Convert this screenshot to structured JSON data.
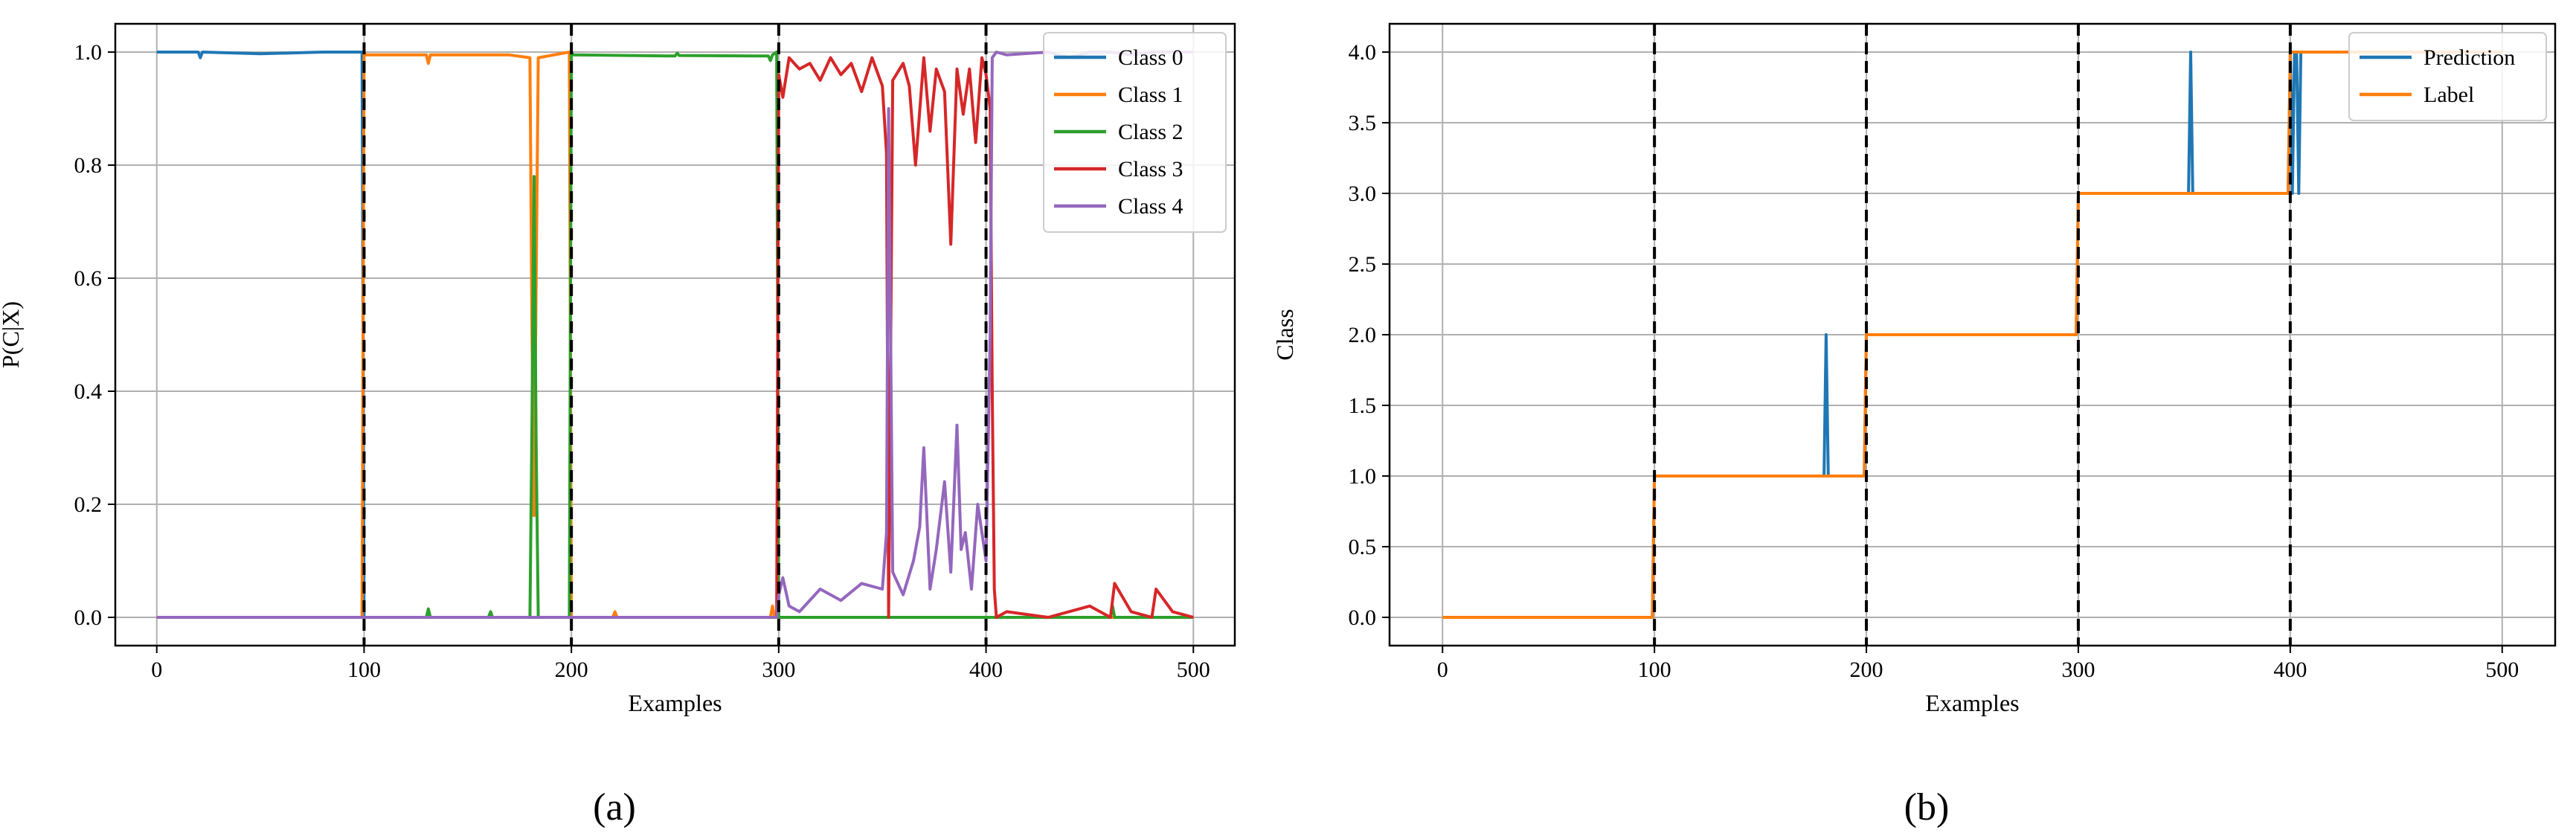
{
  "captions": [
    "(a)",
    "(b)"
  ],
  "chart_data": [
    {
      "type": "line",
      "panel": "a",
      "xlabel": "Examples",
      "ylabel": "P(C|X)",
      "xlim": [
        -20,
        520
      ],
      "ylim": [
        -0.05,
        1.05
      ],
      "xticks": [
        0,
        100,
        200,
        300,
        400,
        500
      ],
      "yticks": [
        0.0,
        0.2,
        0.4,
        0.6,
        0.8,
        1.0
      ],
      "xtick_labels": [
        "0",
        "100",
        "200",
        "300",
        "400",
        "500"
      ],
      "ytick_labels": [
        "0.0",
        "0.2",
        "0.4",
        "0.6",
        "0.8",
        "1.0"
      ],
      "grid": true,
      "legend_position": "top-right",
      "boundaries": [
        100,
        200,
        300,
        400
      ],
      "series": [
        {
          "name": "Class 0",
          "color": "#1f77b4",
          "x": [
            0,
            20,
            21,
            22,
            50,
            80,
            99,
            100,
            101,
            500
          ],
          "y": [
            1.0,
            1.0,
            0.99,
            1.0,
            0.997,
            1.0,
            1.0,
            0.0,
            0.0,
            0.0
          ]
        },
        {
          "name": "Class 1",
          "color": "#ff7f0e",
          "x": [
            0,
            99,
            100,
            101,
            130,
            131,
            132,
            170,
            180,
            181,
            182,
            183,
            184,
            199,
            200,
            201,
            220,
            221,
            222,
            296,
            297,
            298,
            300,
            500
          ],
          "y": [
            0.0,
            0.0,
            1.0,
            0.995,
            0.995,
            0.98,
            0.995,
            0.995,
            0.99,
            0.5,
            0.18,
            0.6,
            0.99,
            1.0,
            0.0,
            0.0,
            0.0,
            0.01,
            0.0,
            0.0,
            0.02,
            0.0,
            0.0,
            0.0
          ]
        },
        {
          "name": "Class 2",
          "color": "#2ca02c",
          "x": [
            0,
            130,
            131,
            132,
            160,
            161,
            162,
            180,
            181,
            182,
            183,
            184,
            199,
            200,
            201,
            250,
            251,
            252,
            295,
            296,
            297,
            299,
            300,
            301,
            460,
            461,
            462,
            500
          ],
          "y": [
            0.0,
            0.0,
            0.015,
            0.0,
            0.0,
            0.01,
            0.0,
            0.0,
            0.35,
            0.78,
            0.3,
            0.0,
            0.0,
            1.0,
            0.995,
            0.993,
            0.998,
            0.994,
            0.993,
            0.985,
            0.995,
            1.0,
            0.0,
            0.0,
            0.0,
            0.02,
            0.0,
            0.0
          ]
        },
        {
          "name": "Class 3",
          "color": "#d62728",
          "x": [
            0,
            299,
            300,
            302,
            305,
            310,
            315,
            320,
            325,
            330,
            335,
            340,
            345,
            350,
            352,
            353,
            355,
            360,
            363,
            366,
            370,
            373,
            376,
            380,
            383,
            386,
            389,
            392,
            395,
            398,
            400,
            402,
            403,
            404,
            405,
            410,
            430,
            450,
            460,
            462,
            470,
            480,
            482,
            490,
            500
          ],
          "y": [
            0.0,
            0.0,
            0.96,
            0.92,
            0.99,
            0.97,
            0.98,
            0.95,
            0.99,
            0.96,
            0.98,
            0.93,
            0.99,
            0.94,
            0.82,
            0.0,
            0.95,
            0.98,
            0.94,
            0.8,
            0.99,
            0.86,
            0.97,
            0.93,
            0.66,
            0.97,
            0.89,
            0.97,
            0.84,
            0.99,
            0.96,
            0.9,
            0.4,
            0.05,
            0.0,
            0.01,
            0.0,
            0.02,
            0.0,
            0.06,
            0.01,
            0.0,
            0.05,
            0.01,
            0.0
          ]
        },
        {
          "name": "Class 4",
          "color": "#9467bd",
          "x": [
            0,
            299,
            300,
            302,
            305,
            310,
            320,
            330,
            340,
            350,
            352,
            353,
            355,
            360,
            365,
            368,
            370,
            373,
            376,
            380,
            383,
            386,
            388,
            390,
            393,
            396,
            400,
            402,
            403,
            405,
            410,
            430,
            440,
            445,
            450,
            460,
            470,
            480,
            500
          ],
          "y": [
            0.0,
            0.0,
            0.04,
            0.07,
            0.02,
            0.01,
            0.05,
            0.03,
            0.06,
            0.05,
            0.15,
            0.9,
            0.08,
            0.04,
            0.1,
            0.16,
            0.3,
            0.05,
            0.12,
            0.24,
            0.08,
            0.34,
            0.12,
            0.15,
            0.05,
            0.2,
            0.1,
            0.5,
            0.99,
            1.0,
            0.995,
            1.0,
            0.99,
            0.995,
            1.0,
            1.0,
            0.995,
            1.0,
            1.0
          ]
        }
      ]
    },
    {
      "type": "line",
      "panel": "b",
      "xlabel": "Examples",
      "ylabel": "Class",
      "xlim": [
        -25,
        525
      ],
      "ylim": [
        -0.2,
        4.2
      ],
      "xticks": [
        0,
        100,
        200,
        300,
        400,
        500
      ],
      "yticks": [
        0.0,
        0.5,
        1.0,
        1.5,
        2.0,
        2.5,
        3.0,
        3.5,
        4.0
      ],
      "xtick_labels": [
        "0",
        "100",
        "200",
        "300",
        "400",
        "500"
      ],
      "ytick_labels": [
        "0.0",
        "0.5",
        "1.0",
        "1.5",
        "2.0",
        "2.5",
        "3.0",
        "3.5",
        "4.0"
      ],
      "grid": true,
      "legend_position": "top-right",
      "boundaries": [
        100,
        200,
        300,
        400
      ],
      "series": [
        {
          "name": "Prediction",
          "color": "#1f77b4",
          "x": [
            0,
            99,
            100,
            180,
            181,
            182,
            183,
            199,
            200,
            299,
            300,
            352,
            353,
            354,
            399,
            400,
            401,
            402,
            403,
            404,
            405,
            500
          ],
          "y": [
            0,
            0,
            1,
            1,
            2,
            1,
            1,
            1,
            2,
            2,
            3,
            3,
            4,
            3,
            3,
            4,
            3,
            4,
            4,
            3,
            4,
            4
          ]
        },
        {
          "name": "Label",
          "color": "#ff7f0e",
          "x": [
            0,
            99,
            100,
            199,
            200,
            299,
            300,
            399,
            400,
            500
          ],
          "y": [
            0,
            0,
            1,
            1,
            2,
            2,
            3,
            3,
            4,
            4
          ]
        }
      ]
    }
  ]
}
